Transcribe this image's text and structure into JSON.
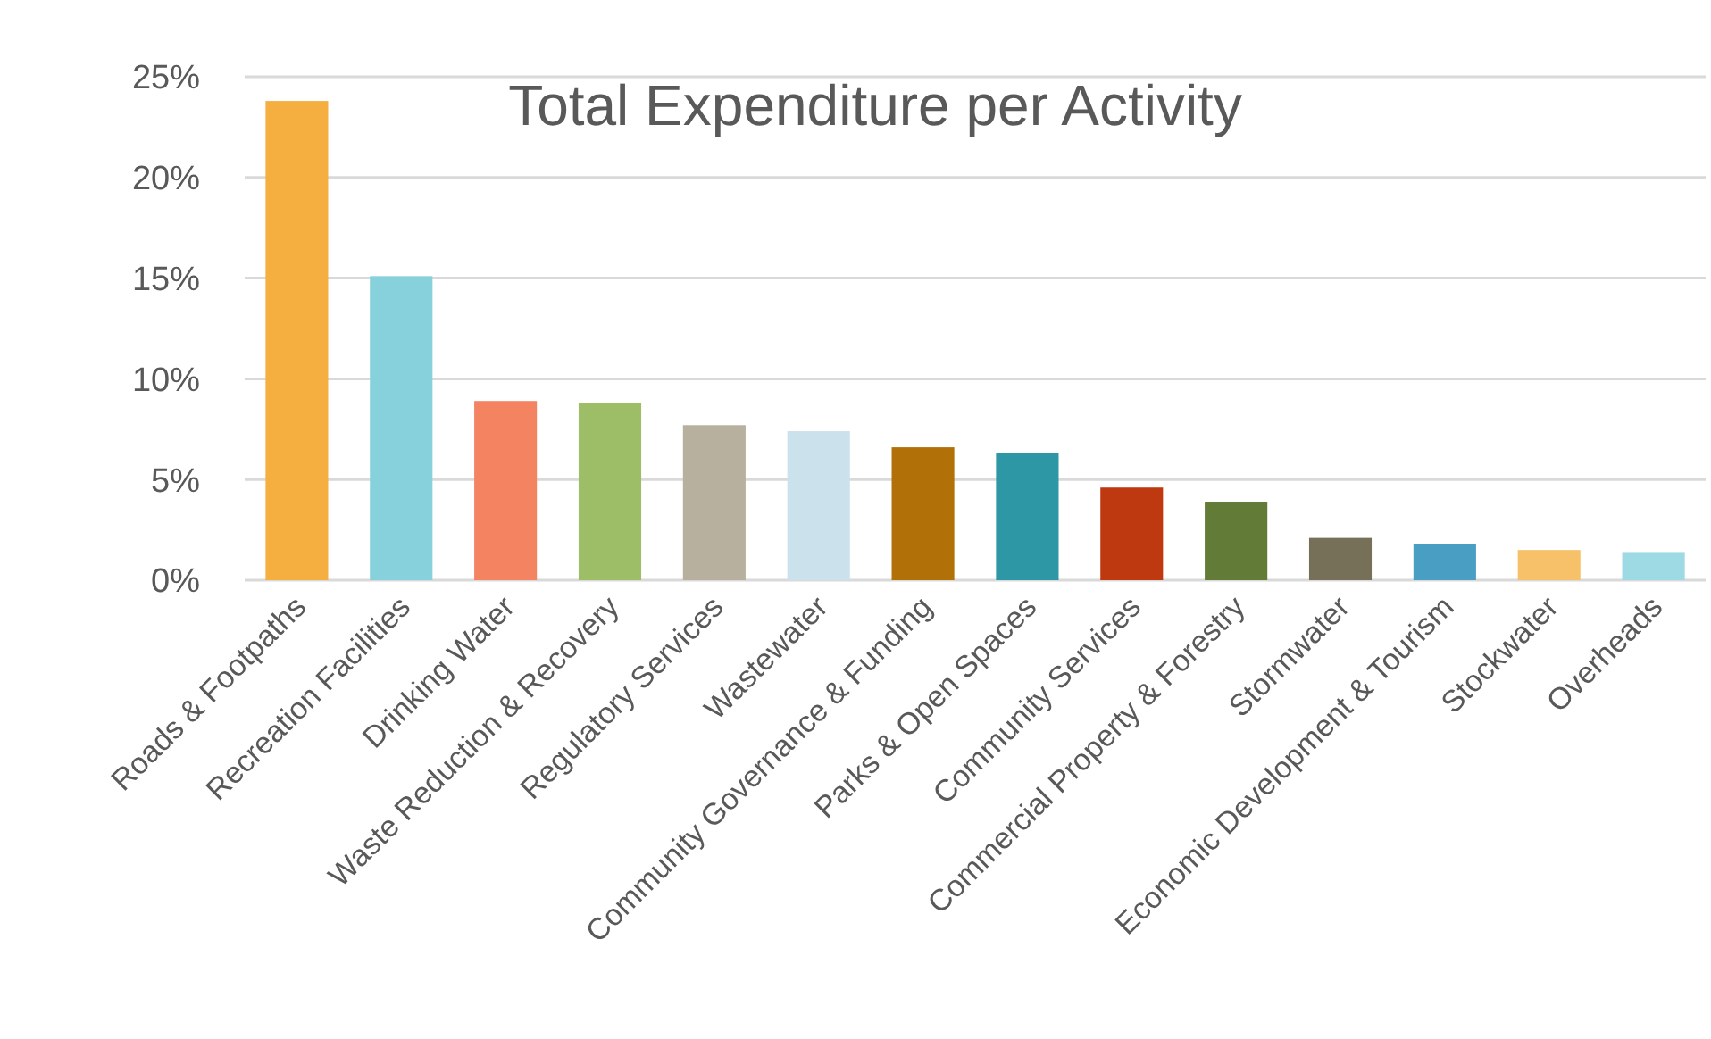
{
  "chart_data": {
    "type": "bar",
    "title": "Total Expenditure per Activity",
    "categories": [
      "Roads & Footpaths",
      "Recreation Facilities",
      "Drinking Water",
      "Waste Reduction & Recovery",
      "Regulatory Services",
      "Wastewater",
      "Community Governance & Funding",
      "Parks & Open Spaces",
      "Community Services",
      "Commercial Property & Forestry",
      "Stormwater",
      "Economic Development & Tourism",
      "Stockwater",
      "Overheads"
    ],
    "values": [
      23.8,
      15.1,
      8.9,
      8.8,
      7.7,
      7.4,
      6.6,
      6.3,
      4.6,
      3.9,
      2.1,
      1.8,
      1.5,
      1.4
    ],
    "colors": [
      "#f5af41",
      "#86d1dc",
      "#f38361",
      "#9dbd66",
      "#b7b09e",
      "#cbe1ec",
      "#b27009",
      "#2e97a5",
      "#bf3910",
      "#627b37",
      "#777058",
      "#499ec3",
      "#f7c16a",
      "#9ddae4"
    ],
    "ylim": [
      0,
      25
    ],
    "yticks": [
      {
        "value": 0,
        "label": "0%"
      },
      {
        "value": 5,
        "label": "5%"
      },
      {
        "value": 10,
        "label": "10%"
      },
      {
        "value": 15,
        "label": "15%"
      },
      {
        "value": 20,
        "label": "20%"
      },
      {
        "value": 25,
        "label": "25%"
      }
    ],
    "grid": "y"
  }
}
